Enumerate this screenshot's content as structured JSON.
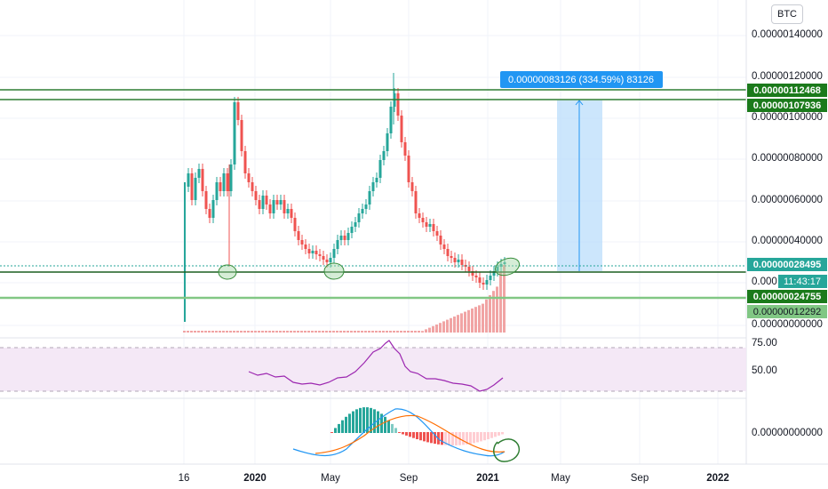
{
  "currency_badge": "BTC",
  "price_axis": {
    "ticks": [
      "0.00000140000",
      "0.00000120000",
      "0.00000100000",
      "0.00000080000",
      "0.00000060000",
      "0.00000040000",
      "0.000",
      "0.00000000000"
    ],
    "tags": {
      "upper_line": "0.00000112468",
      "upper_line_2": "0.00000107936",
      "current_price": "0.00000028495",
      "countdown": "11:43:17",
      "lower_line": "0.00000024755",
      "volume_value": "0.00000012292"
    },
    "colors": {
      "green_tag": "#1b7a1b",
      "teal_tag": "#26a69a",
      "light_green_tag": "#81c784"
    }
  },
  "time_axis": {
    "ticks": [
      "16",
      "2020",
      "May",
      "Sep",
      "2021",
      "May",
      "Sep",
      "2022"
    ]
  },
  "measure_tool": {
    "label": "0.00000083126 (334.59%) 83126",
    "color": "#2196f3"
  },
  "rsi_pane": {
    "ticks": [
      "75.00",
      "50.00"
    ],
    "color": "#9c27b0"
  },
  "macd_pane": {
    "ticks": [
      "0.00000000000"
    ]
  },
  "colors": {
    "up": "#26a69a",
    "down": "#ef5350",
    "support_line": "#2e7d32",
    "rsi_band": "#f3e5f5"
  }
}
